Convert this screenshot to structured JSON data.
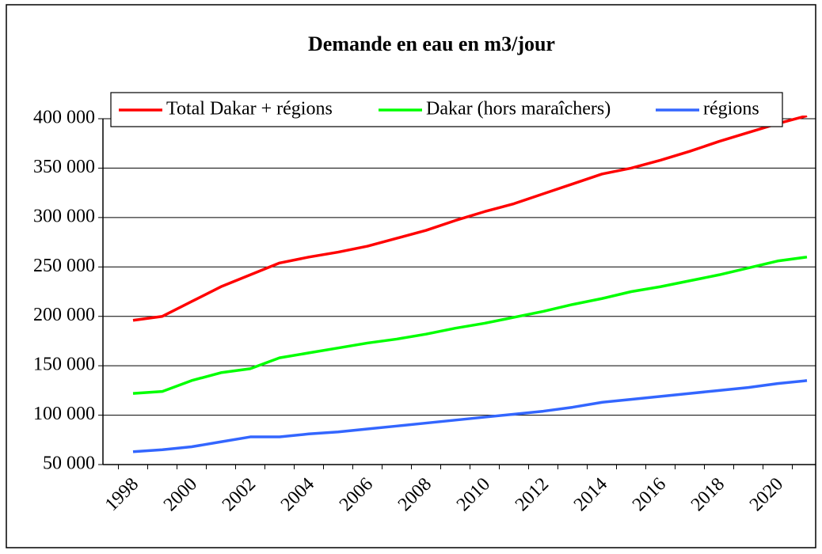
{
  "chart_data": {
    "type": "line",
    "title": "Demande en eau en m3/jour",
    "categories": [
      "1998",
      null,
      "2000",
      null,
      "2002",
      null,
      "2004",
      null,
      "2006",
      null,
      "2008",
      null,
      "2010",
      null,
      "2012",
      null,
      "2014",
      null,
      "2016",
      null,
      "2018",
      null,
      "2020",
      null
    ],
    "series": [
      {
        "name": "Total Dakar + régions",
        "color": "#ff0000",
        "values": [
          196000,
          200000,
          215000,
          230000,
          242000,
          254000,
          260000,
          265000,
          271000,
          279000,
          287000,
          297000,
          306000,
          314000,
          324000,
          334000,
          344000,
          350000,
          358000,
          367000,
          377000,
          386000,
          395000,
          403000
        ]
      },
      {
        "name": "Dakar (hors maraîchers)",
        "color": "#00ff00",
        "values": [
          122000,
          124000,
          135000,
          143000,
          147000,
          158000,
          163000,
          168000,
          173000,
          177000,
          182000,
          188000,
          193000,
          199000,
          205000,
          212000,
          218000,
          225000,
          230000,
          236000,
          242000,
          249000,
          256000,
          260000
        ]
      },
      {
        "name": "régions",
        "color": "#3366ff",
        "values": [
          63000,
          65000,
          68000,
          73000,
          78000,
          78000,
          81000,
          83000,
          86000,
          89000,
          92000,
          95000,
          98000,
          101000,
          104000,
          108000,
          113000,
          116000,
          119000,
          122000,
          125000,
          128000,
          132000,
          135000
        ]
      }
    ],
    "ylim": [
      50000,
      400000
    ],
    "yticks": [
      {
        "value": 50000,
        "label": "50 000"
      },
      {
        "value": 100000,
        "label": "100 000"
      },
      {
        "value": 150000,
        "label": "150 000"
      },
      {
        "value": 200000,
        "label": "200 000"
      },
      {
        "value": 250000,
        "label": "250 000"
      },
      {
        "value": 300000,
        "label": "300 000"
      },
      {
        "value": 350000,
        "label": "350 000"
      },
      {
        "value": 400000,
        "label": "400 000"
      }
    ],
    "grid": true,
    "legend": "top"
  }
}
